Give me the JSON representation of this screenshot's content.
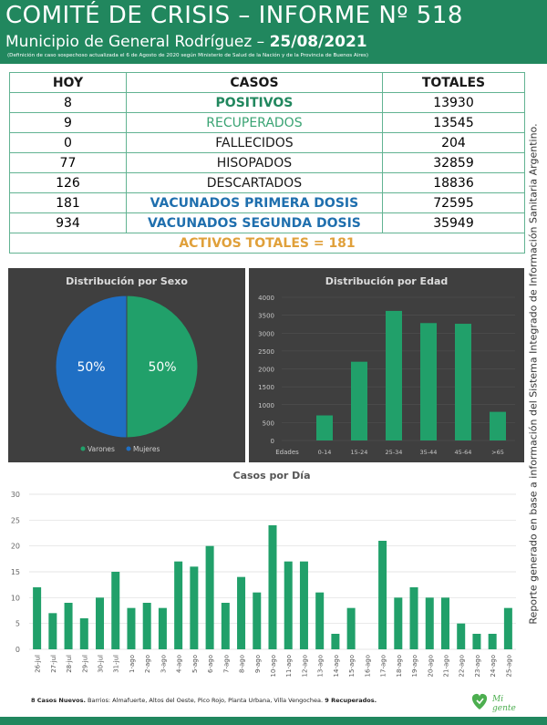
{
  "header": {
    "title": "COMITÉ DE CRISIS – INFORME Nº 518",
    "subtitle_prefix": "Municipio de General Rodríguez –",
    "subtitle_date": "25/08/2021",
    "note": "(Definición de caso sospechoso actualizada el 6 de Agosto de 2020 según Ministerio de Salud de la Nación y de la Provincia de Buenos Aires)"
  },
  "table": {
    "headers": [
      "HOY",
      "CASOS",
      "TOTALES"
    ],
    "rows": [
      {
        "hoy": "8",
        "casos": "POSITIVOS",
        "totales": "13930",
        "color": "#21875e",
        "bold": true
      },
      {
        "hoy": "9",
        "casos": "RECUPERADOS",
        "totales": "13545",
        "color": "#3aa373",
        "bold": false
      },
      {
        "hoy": "0",
        "casos": "FALLECIDOS",
        "totales": "204",
        "color": "#1a1a1a",
        "bold": false
      },
      {
        "hoy": "77",
        "casos": "HISOPADOS",
        "totales": "32859",
        "color": "#1a1a1a",
        "bold": false
      },
      {
        "hoy": "126",
        "casos": "DESCARTADOS",
        "totales": "18836",
        "color": "#1a1a1a",
        "bold": false
      },
      {
        "hoy": "181",
        "casos": "VACUNADOS PRIMERA DOSIS",
        "totales": "72595",
        "color": "#1f6fae",
        "bold": true
      },
      {
        "hoy": "934",
        "casos": "VACUNADOS SEGUNDA DOSIS",
        "totales": "35949",
        "color": "#1f6fae",
        "bold": true
      }
    ],
    "activos": "ACTIVOS TOTALES = 181"
  },
  "side_note": "Reporte generado en base a información del Sistema Integrado de Información Sanitaria Argentino.",
  "footer": {
    "bold_part": "8 Casos Nuevos.",
    "text": " Barrios: Almafuerte, Altos del Oeste, Pico Rojo, Planta Urbana, Villa Vengochea.",
    "recovered": " 9 Recuperados."
  },
  "logo": {
    "text": "Mi gente",
    "color": "#4cae4f"
  },
  "colors": {
    "green": "#21875e",
    "bar": "#21a06a",
    "blue": "#1f6fc4",
    "panel": "#3f3f3f"
  },
  "chart_data": [
    {
      "type": "pie",
      "title": "Distribución por Sexo",
      "labels": [
        "Varones",
        "Mujeres"
      ],
      "values": [
        50,
        50
      ],
      "value_labels": [
        "50%",
        "50%"
      ],
      "colors": [
        "#21a06a",
        "#1f6fc4"
      ],
      "legend": "bottom"
    },
    {
      "type": "bar",
      "title": "Distribución por Edad",
      "xlabel": "Edades",
      "categories": [
        "0-14",
        "15-24",
        "25-34",
        "35-44",
        "45-64",
        ">65"
      ],
      "values": [
        700,
        2200,
        3620,
        3280,
        3260,
        800
      ],
      "ylim": [
        0,
        4000
      ],
      "yticks": [
        0,
        500,
        1000,
        1500,
        2000,
        2500,
        3000,
        3500,
        4000
      ],
      "color": "#21a06a"
    },
    {
      "type": "bar",
      "title": "Casos por Día",
      "categories": [
        "26-jul",
        "27-jul",
        "28-jul",
        "29-jul",
        "30-jul",
        "31-jul",
        "1-ago",
        "2-ago",
        "3-ago",
        "4-ago",
        "5-ago",
        "6-ago",
        "7-ago",
        "8-ago",
        "9-ago",
        "10-ago",
        "11-ago",
        "12-ago",
        "13-ago",
        "14-ago",
        "15-ago",
        "16-ago",
        "17-ago",
        "18-ago",
        "19-ago",
        "20-ago",
        "21-ago",
        "22-ago",
        "23-ago",
        "24-ago",
        "25-ago"
      ],
      "values": [
        12,
        7,
        9,
        6,
        10,
        15,
        8,
        9,
        8,
        17,
        16,
        20,
        9,
        14,
        11,
        24,
        17,
        17,
        11,
        3,
        8,
        0,
        21,
        10,
        12,
        10,
        10,
        5,
        3,
        3,
        8
      ],
      "ylim": [
        0,
        30
      ],
      "yticks": [
        0,
        5,
        10,
        15,
        20,
        25,
        30
      ],
      "color": "#21a06a"
    }
  ]
}
